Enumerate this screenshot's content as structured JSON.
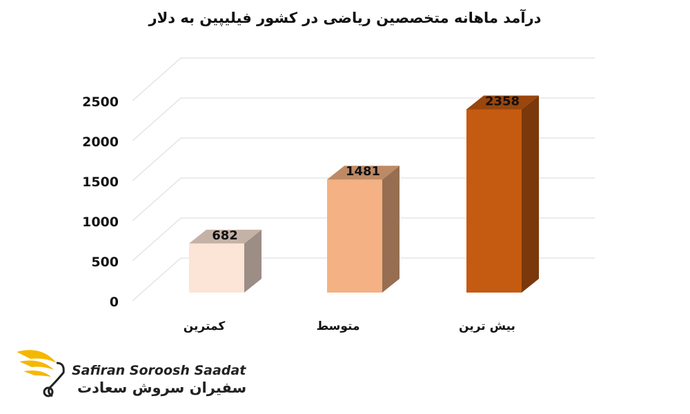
{
  "chart_data": {
    "type": "bar",
    "title": "درآمد ماهانه متخصصین ریاضی در کشور فیلیپین به دلار",
    "xlabel": "",
    "ylabel": "",
    "categories": [
      "کمترین",
      "متوسط",
      "بیش ترین"
    ],
    "values": [
      682,
      1481,
      2358
    ],
    "colors": [
      "#FCE4D6",
      "#F4B183",
      "#C55A11"
    ],
    "ylim": [
      0,
      2500
    ],
    "yticks": [
      "0",
      "500",
      "1000",
      "1500",
      "2000",
      "2500"
    ],
    "data_labels": [
      "682",
      "1481",
      "2358"
    ],
    "grid": true,
    "style": "3d-column"
  },
  "logo": {
    "name_en": "Safiran Soroosh Saadat",
    "name_fa": "سفیران سروش سعادت",
    "accent_color": "#F5B800"
  }
}
